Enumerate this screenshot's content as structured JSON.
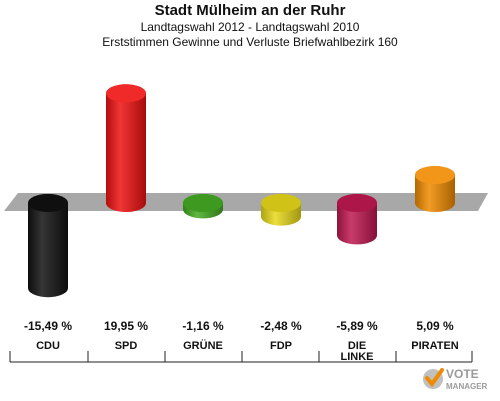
{
  "header": {
    "title": "Stadt Mülheim an der Ruhr",
    "subtitle1": "Landtagswahl 2012 - Landtagswahl 2010",
    "subtitle2": "Erststimmen Gewinne und Verluste Briefwahlbezirk 160"
  },
  "logo": {
    "line1": "VOTE",
    "line2": "MANAGER"
  },
  "chart_data": {
    "type": "bar",
    "title": "Stadt Mülheim an der Ruhr",
    "subtitle": "Landtagswahl 2012 - Landtagswahl 2010 / Erststimmen Gewinne und Verluste Briefwahlbezirk 160",
    "categories": [
      "CDU",
      "SPD",
      "GRÜNE",
      "FDP",
      "DIE LINKE",
      "PIRATEN"
    ],
    "values": [
      -15.49,
      19.95,
      -1.16,
      -2.48,
      -5.89,
      5.09
    ],
    "value_labels": [
      "-15,49 %",
      "19,95 %",
      "-1,16 %",
      "-2,48 %",
      "-5,89 %",
      "5,09 %"
    ],
    "colors": [
      "#111111",
      "#ee1111",
      "#44aa22",
      "#e8d81a",
      "#c01850",
      "#f08a00"
    ],
    "xlabel": "",
    "ylabel": "",
    "ylim": [
      -20,
      20
    ],
    "grid": false
  }
}
